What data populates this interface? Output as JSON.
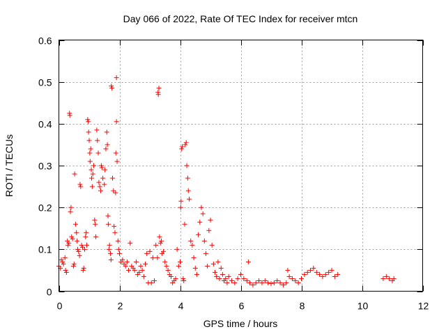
{
  "chart_data": {
    "type": "scatter",
    "title": "Day 066 of 2022, Rate Of TEC Index for receiver mtcn",
    "xlabel": "GPS time / hours",
    "ylabel": "ROTI / TECUs",
    "xlim": [
      0,
      12
    ],
    "ylim": [
      0,
      0.6
    ],
    "x_ticks": [
      0,
      2,
      4,
      6,
      8,
      10,
      12
    ],
    "y_ticks": [
      0,
      0.1,
      0.2,
      0.3,
      0.4,
      0.5,
      0.6
    ],
    "x_tick_labels": [
      "0",
      "2",
      "4",
      "6",
      "8",
      "10",
      "12"
    ],
    "y_tick_labels": [
      "0",
      "0.1",
      "0.2",
      "0.3",
      "0.4",
      "0.5",
      "0.6"
    ],
    "grid": true,
    "marker": "plus",
    "color": "#ff0000",
    "series": [
      {
        "points": [
          [
            0.0,
            0.06
          ],
          [
            0.05,
            0.055
          ],
          [
            0.08,
            0.075
          ],
          [
            0.12,
            0.07
          ],
          [
            0.15,
            0.065
          ],
          [
            0.2,
            0.08
          ],
          [
            0.22,
            0.05
          ],
          [
            0.25,
            0.045
          ],
          [
            0.28,
            0.12
          ],
          [
            0.3,
            0.11
          ],
          [
            0.33,
            0.115
          ],
          [
            0.35,
            0.425
          ],
          [
            0.36,
            0.42
          ],
          [
            0.38,
            0.19
          ],
          [
            0.4,
            0.2
          ],
          [
            0.42,
            0.13
          ],
          [
            0.45,
            0.125
          ],
          [
            0.48,
            0.06
          ],
          [
            0.5,
            0.065
          ],
          [
            0.52,
            0.28
          ],
          [
            0.55,
            0.16
          ],
          [
            0.58,
            0.14
          ],
          [
            0.6,
            0.12
          ],
          [
            0.62,
            0.1
          ],
          [
            0.65,
            0.095
          ],
          [
            0.68,
            0.085
          ],
          [
            0.7,
            0.255
          ],
          [
            0.72,
            0.25
          ],
          [
            0.75,
            0.11
          ],
          [
            0.78,
            0.105
          ],
          [
            0.8,
            0.05
          ],
          [
            0.82,
            0.055
          ],
          [
            0.85,
            0.1
          ],
          [
            0.88,
            0.13
          ],
          [
            0.9,
            0.14
          ],
          [
            0.92,
            0.11
          ],
          [
            0.95,
            0.41
          ],
          [
            0.97,
            0.405
          ],
          [
            0.98,
            0.38
          ],
          [
            1.0,
            0.36
          ],
          [
            1.02,
            0.33
          ],
          [
            1.03,
            0.31
          ],
          [
            1.05,
            0.34
          ],
          [
            1.07,
            0.29
          ],
          [
            1.08,
            0.27
          ],
          [
            1.1,
            0.25
          ],
          [
            1.12,
            0.28
          ],
          [
            1.15,
            0.3
          ],
          [
            1.18,
            0.17
          ],
          [
            1.2,
            0.16
          ],
          [
            1.22,
            0.13
          ],
          [
            1.25,
            0.385
          ],
          [
            1.27,
            0.36
          ],
          [
            1.3,
            0.33
          ],
          [
            1.32,
            0.26
          ],
          [
            1.35,
            0.25
          ],
          [
            1.38,
            0.24
          ],
          [
            1.4,
            0.3
          ],
          [
            1.42,
            0.295
          ],
          [
            1.45,
            0.27
          ],
          [
            1.5,
            0.255
          ],
          [
            1.52,
            0.29
          ],
          [
            1.55,
            0.34
          ],
          [
            1.58,
            0.38
          ],
          [
            1.6,
            0.35
          ],
          [
            1.62,
            0.18
          ],
          [
            1.63,
            0.16
          ],
          [
            1.65,
            0.1
          ],
          [
            1.67,
            0.11
          ],
          [
            1.7,
            0.09
          ],
          [
            1.72,
            0.075
          ],
          [
            1.73,
            0.49
          ],
          [
            1.75,
            0.485
          ],
          [
            1.77,
            0.27
          ],
          [
            1.8,
            0.24
          ],
          [
            1.82,
            0.155
          ],
          [
            1.85,
            0.14
          ],
          [
            1.87,
            0.235
          ],
          [
            1.88,
            0.33
          ],
          [
            1.9,
            0.405
          ],
          [
            1.9,
            0.51
          ],
          [
            1.92,
            0.31
          ],
          [
            1.95,
            0.12
          ],
          [
            1.97,
            0.1
          ],
          [
            2.0,
            0.09
          ],
          [
            2.05,
            0.07
          ],
          [
            2.1,
            0.075
          ],
          [
            2.15,
            0.065
          ],
          [
            2.2,
            0.06
          ],
          [
            2.25,
            0.07
          ],
          [
            2.3,
            0.05
          ],
          [
            2.35,
            0.115
          ],
          [
            2.4,
            0.06
          ],
          [
            2.45,
            0.055
          ],
          [
            2.5,
            0.05
          ],
          [
            2.55,
            0.07
          ],
          [
            2.6,
            0.04
          ],
          [
            2.65,
            0.045
          ],
          [
            2.7,
            0.06
          ],
          [
            2.75,
            0.05
          ],
          [
            2.8,
            0.035
          ],
          [
            2.85,
            0.065
          ],
          [
            2.9,
            0.09
          ],
          [
            2.95,
            0.02
          ],
          [
            3.0,
            0.095
          ],
          [
            3.05,
            0.02
          ],
          [
            3.1,
            0.08
          ],
          [
            3.15,
            0.025
          ],
          [
            3.2,
            0.11
          ],
          [
            3.25,
            0.08
          ],
          [
            3.27,
            0.475
          ],
          [
            3.28,
            0.47
          ],
          [
            3.3,
            0.485
          ],
          [
            3.32,
            0.13
          ],
          [
            3.35,
            0.115
          ],
          [
            3.38,
            0.12
          ],
          [
            3.4,
            0.09
          ],
          [
            3.45,
            0.095
          ],
          [
            3.5,
            0.07
          ],
          [
            3.55,
            0.06
          ],
          [
            3.6,
            0.05
          ],
          [
            3.65,
            0.04
          ],
          [
            3.7,
            0.035
          ],
          [
            3.75,
            0.02
          ],
          [
            3.8,
            0.025
          ],
          [
            3.85,
            0.03
          ],
          [
            3.9,
            0.1
          ],
          [
            3.95,
            0.06
          ],
          [
            4.0,
            0.07
          ],
          [
            4.02,
            0.2
          ],
          [
            4.03,
            0.215
          ],
          [
            4.05,
            0.34
          ],
          [
            4.07,
            0.345
          ],
          [
            4.1,
            0.03
          ],
          [
            4.12,
            0.025
          ],
          [
            4.15,
            0.16
          ],
          [
            4.17,
            0.35
          ],
          [
            4.2,
            0.355
          ],
          [
            4.22,
            0.3
          ],
          [
            4.25,
            0.27
          ],
          [
            4.27,
            0.24
          ],
          [
            4.3,
            0.22
          ],
          [
            4.35,
            0.12
          ],
          [
            4.4,
            0.11
          ],
          [
            4.45,
            0.08
          ],
          [
            4.5,
            0.055
          ],
          [
            4.55,
            0.04
          ],
          [
            4.6,
            0.135
          ],
          [
            4.65,
            0.165
          ],
          [
            4.7,
            0.2
          ],
          [
            4.75,
            0.185
          ],
          [
            4.8,
            0.12
          ],
          [
            4.85,
            0.09
          ],
          [
            4.9,
            0.06
          ],
          [
            4.95,
            0.145
          ],
          [
            5.0,
            0.17
          ],
          [
            5.05,
            0.11
          ],
          [
            5.1,
            0.065
          ],
          [
            5.15,
            0.045
          ],
          [
            5.2,
            0.035
          ],
          [
            5.25,
            0.07
          ],
          [
            5.3,
            0.03
          ],
          [
            5.35,
            0.055
          ],
          [
            5.4,
            0.04
          ],
          [
            5.45,
            0.025
          ],
          [
            5.5,
            0.03
          ],
          [
            5.55,
            0.02
          ],
          [
            5.6,
            0.035
          ],
          [
            5.7,
            0.025
          ],
          [
            5.8,
            0.02
          ],
          [
            5.9,
            0.03
          ],
          [
            6.0,
            0.04
          ],
          [
            6.1,
            0.03
          ],
          [
            6.2,
            0.025
          ],
          [
            6.25,
            0.07
          ],
          [
            6.3,
            0.02
          ],
          [
            6.4,
            0.015
          ],
          [
            6.5,
            0.02
          ],
          [
            6.6,
            0.025
          ],
          [
            6.7,
            0.02
          ],
          [
            6.8,
            0.025
          ],
          [
            6.9,
            0.02
          ],
          [
            7.0,
            0.018
          ],
          [
            7.1,
            0.02
          ],
          [
            7.2,
            0.025
          ],
          [
            7.3,
            0.02
          ],
          [
            7.4,
            0.015
          ],
          [
            7.5,
            0.02
          ],
          [
            7.55,
            0.05
          ],
          [
            7.6,
            0.035
          ],
          [
            7.7,
            0.03
          ],
          [
            7.8,
            0.025
          ],
          [
            7.9,
            0.02
          ],
          [
            8.0,
            0.03
          ],
          [
            8.1,
            0.04
          ],
          [
            8.2,
            0.045
          ],
          [
            8.3,
            0.05
          ],
          [
            8.4,
            0.055
          ],
          [
            8.5,
            0.045
          ],
          [
            8.6,
            0.04
          ],
          [
            8.7,
            0.035
          ],
          [
            8.8,
            0.04
          ],
          [
            8.9,
            0.045
          ],
          [
            9.0,
            0.05
          ],
          [
            9.1,
            0.035
          ],
          [
            9.2,
            0.04
          ],
          [
            10.7,
            0.03
          ],
          [
            10.8,
            0.035
          ],
          [
            10.9,
            0.03
          ],
          [
            11.0,
            0.025
          ],
          [
            11.05,
            0.03
          ]
        ]
      }
    ]
  }
}
